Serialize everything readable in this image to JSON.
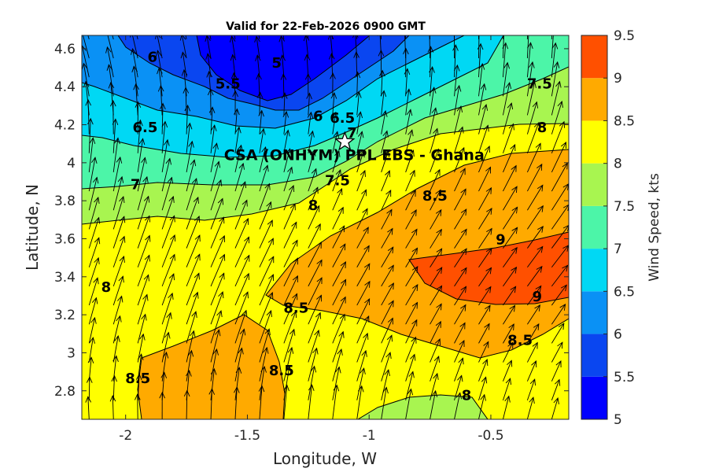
{
  "chart_data": {
    "type": "heatmap",
    "title": "Valid for 22-Feb-2026 0900 GMT",
    "xlabel": "Longitude, W",
    "ylabel": "Latitude, N",
    "xlim": [
      -2.18,
      -0.18
    ],
    "ylim": [
      2.65,
      4.67
    ],
    "x_ticks": [
      -2,
      -1.5,
      -1,
      -0.5
    ],
    "y_ticks": [
      2.8,
      3.0,
      3.2,
      3.4,
      3.6,
      3.8,
      4.0,
      4.2,
      4.4,
      4.6
    ],
    "x_tick_labels": [
      "-2",
      "-1.5",
      "-1",
      "-0.5"
    ],
    "y_tick_labels": [
      "2.8",
      "3",
      "3.2",
      "3.4",
      "3.6",
      "3.8",
      "4",
      "4.2",
      "4.4",
      "4.6"
    ],
    "colorbar": {
      "label": "Wind Speed, kts",
      "levels": [
        5,
        5.5,
        6,
        6.5,
        7,
        7.5,
        8,
        8.5,
        9,
        9.5
      ],
      "tick_labels": [
        "5",
        "5.5",
        "6",
        "6.5",
        "7",
        "7.5",
        "8",
        "8.5",
        "9",
        "9.5"
      ],
      "colors": [
        "#0000ff",
        "#0a46f0",
        "#0a91f5",
        "#00d8f4",
        "#4cf5a8",
        "#a8f550",
        "#ffff00",
        "#ffaa00",
        "#ff5000"
      ]
    },
    "contour_labels": [
      {
        "text": "5",
        "lon": -1.38,
        "lat": 4.53
      },
      {
        "text": "5.5",
        "lon": -1.58,
        "lat": 4.42
      },
      {
        "text": "6",
        "lon": -1.89,
        "lat": 4.56
      },
      {
        "text": "6",
        "lon": -1.21,
        "lat": 4.25
      },
      {
        "text": "6.5",
        "lon": -1.11,
        "lat": 4.24
      },
      {
        "text": "6.5",
        "lon": -1.92,
        "lat": 4.19
      },
      {
        "text": "7",
        "lon": -1.07,
        "lat": 4.16
      },
      {
        "text": "7",
        "lon": -1.96,
        "lat": 3.89
      },
      {
        "text": "7.5",
        "lon": -1.13,
        "lat": 3.91
      },
      {
        "text": "7.5",
        "lon": -0.3,
        "lat": 4.42
      },
      {
        "text": "8",
        "lon": -0.29,
        "lat": 4.19
      },
      {
        "text": "8",
        "lon": -1.23,
        "lat": 3.78
      },
      {
        "text": "8",
        "lon": -2.08,
        "lat": 3.35
      },
      {
        "text": "8",
        "lon": -0.6,
        "lat": 2.78
      },
      {
        "text": "8.5",
        "lon": -0.73,
        "lat": 3.83
      },
      {
        "text": "8.5",
        "lon": -1.3,
        "lat": 3.24
      },
      {
        "text": "8.5",
        "lon": -0.38,
        "lat": 3.07
      },
      {
        "text": "8.5",
        "lon": -1.95,
        "lat": 2.87
      },
      {
        "text": "8.5",
        "lon": -1.36,
        "lat": 2.91
      },
      {
        "text": "9",
        "lon": -0.46,
        "lat": 3.6
      },
      {
        "text": "9",
        "lon": -0.31,
        "lat": 3.3
      }
    ],
    "site": {
      "label": "CSA (ONHYM) PPL EBS  - Ghana",
      "lon": -1.1,
      "lat": 4.11,
      "marker": "star"
    },
    "wind_vectors": {
      "direction": "toward north-northeast",
      "grid_spacing_deg": 0.1,
      "length_scales_with_speed": true
    }
  }
}
